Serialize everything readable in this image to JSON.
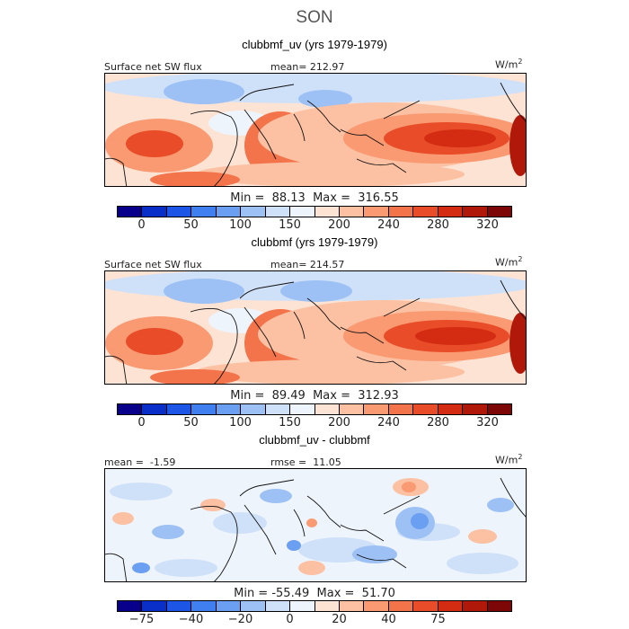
{
  "figure": {
    "season": "SON"
  },
  "chart_data": [
    {
      "type": "heatmap",
      "title": "clubbmf_uv (yrs 1979-1979)",
      "variable": "Surface net SW flux",
      "mean_label": "mean= 212.97",
      "units": "W/m",
      "units_exp": "2",
      "min": 88.13,
      "max": 316.55,
      "minmax_label": "Min =  88.13  Max =  316.55",
      "colorbar": {
        "tick_labels": [
          "0",
          "50",
          "100",
          "150",
          "200",
          "240",
          "280",
          "320"
        ],
        "colors": [
          "#08008a",
          "#0a2ec8",
          "#1d55e6",
          "#3f7fef",
          "#6b9ff1",
          "#9dc1f4",
          "#cfe1f8",
          "#eef4fc",
          "#fde3d4",
          "#fcc0a2",
          "#f99a72",
          "#f3734a",
          "#e84c28",
          "#d32c12",
          "#b0180a",
          "#7d0606"
        ]
      }
    },
    {
      "type": "heatmap",
      "title": "clubbmf (yrs 1979-1979)",
      "variable": "Surface net SW flux",
      "mean_label": "mean= 214.57",
      "units": "W/m",
      "units_exp": "2",
      "min": 89.49,
      "max": 312.93,
      "minmax_label": "Min =  89.49  Max =  312.93",
      "colorbar": {
        "tick_labels": [
          "0",
          "50",
          "100",
          "150",
          "200",
          "240",
          "280",
          "320"
        ],
        "colors": [
          "#08008a",
          "#0a2ec8",
          "#1d55e6",
          "#3f7fef",
          "#6b9ff1",
          "#9dc1f4",
          "#cfe1f8",
          "#eef4fc",
          "#fde3d4",
          "#fcc0a2",
          "#f99a72",
          "#f3734a",
          "#e84c28",
          "#d32c12",
          "#b0180a",
          "#7d0606"
        ]
      }
    },
    {
      "type": "heatmap",
      "title": "clubbmf_uv - clubbmf",
      "mean_label": "mean =  -1.59",
      "rmse_label": "rmse =  11.05",
      "units": "W/m",
      "units_exp": "2",
      "min": -55.49,
      "max": 51.7,
      "minmax_label": "Min = -55.49  Max =  51.70",
      "colorbar": {
        "tick_labels": [
          "−75",
          "−40",
          "−20",
          "0",
          "20",
          "40",
          "75"
        ],
        "colors": [
          "#08008a",
          "#0a2ec8",
          "#1d55e6",
          "#3f7fef",
          "#6b9ff1",
          "#9dc1f4",
          "#cfe1f8",
          "#eef4fc",
          "#fde3d4",
          "#fcc0a2",
          "#f99a72",
          "#f3734a",
          "#e84c28",
          "#d32c12",
          "#b0180a",
          "#7d0606"
        ]
      }
    }
  ]
}
